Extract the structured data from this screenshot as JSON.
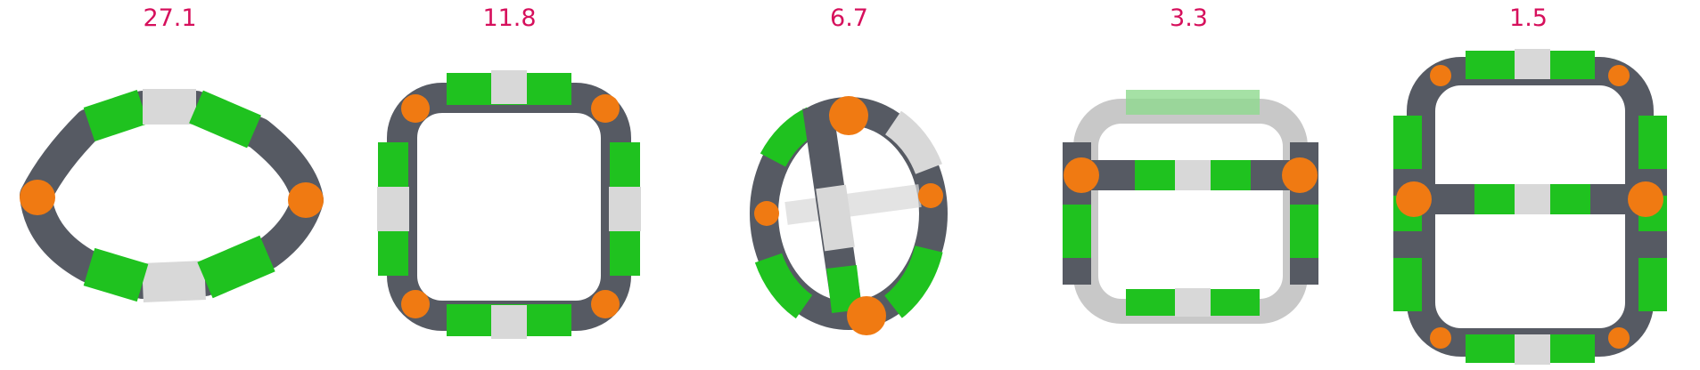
{
  "panels": [
    {
      "label": "27.1"
    },
    {
      "label": "11.8"
    },
    {
      "label": "6.7"
    },
    {
      "label": "3.3"
    },
    {
      "label": "1.5"
    }
  ],
  "colors": {
    "label": "#d6105c",
    "green": "#1fc21f",
    "gray": "#565a63",
    "white": "#d8d8d8",
    "orange": "#f07a12"
  }
}
